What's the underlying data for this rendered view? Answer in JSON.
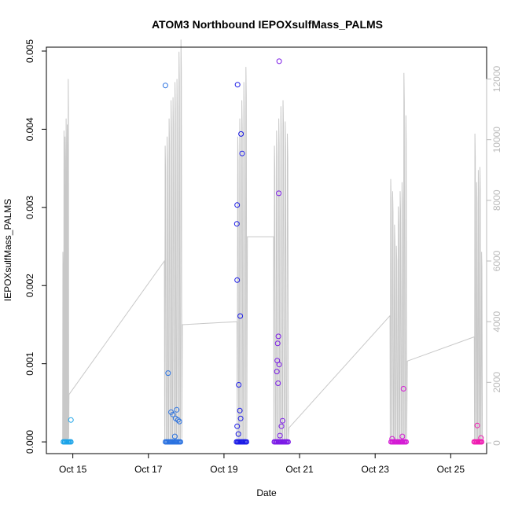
{
  "chart_data": {
    "type": "scatter",
    "title": "ATOM3 Northbound IEPOXsulfMass_PALMS",
    "xlabel": "Date",
    "ylabel": "IEPOXsulfMass_PALMS",
    "x_ticks": [
      "Oct 15",
      "Oct 17",
      "Oct 19",
      "Oct 21",
      "Oct 23",
      "Oct 25"
    ],
    "xlim_days": [
      14.3,
      25.95
    ],
    "ylim": [
      -0.00015,
      0.00505
    ],
    "y_ticks": [
      "0.000",
      "0.001",
      "0.002",
      "0.003",
      "0.004",
      "0.005"
    ],
    "y2_ticks": [
      "0",
      "2000",
      "4000",
      "6000",
      "8000",
      "10000",
      "12000"
    ],
    "y2lim": [
      -350,
      13050
    ],
    "grid": false,
    "colors": {
      "altitude_line": "#c8c8c8",
      "secondary_axis": "#bbbbbb",
      "flight_colors": [
        "#1aa3e8",
        "#2b72e0",
        "#1a1ae6",
        "#7b1ae6",
        "#d41ad4",
        "#ef1ab0"
      ]
    },
    "points": [
      {
        "x": 14.95,
        "y": 0.00028,
        "c": 0
      },
      {
        "x": 17.45,
        "y": 0.00456,
        "c": 1
      },
      {
        "x": 17.52,
        "y": 0.00088,
        "c": 1
      },
      {
        "x": 17.6,
        "y": 0.00038,
        "c": 1
      },
      {
        "x": 17.65,
        "y": 0.00035,
        "c": 1
      },
      {
        "x": 17.72,
        "y": 0.0003,
        "c": 1
      },
      {
        "x": 17.75,
        "y": 0.00041,
        "c": 1
      },
      {
        "x": 17.78,
        "y": 0.00028,
        "c": 1
      },
      {
        "x": 17.82,
        "y": 0.00026,
        "c": 1
      },
      {
        "x": 17.7,
        "y": 7e-05,
        "c": 1
      },
      {
        "x": 19.36,
        "y": 0.00457,
        "c": 2
      },
      {
        "x": 19.45,
        "y": 0.00394,
        "c": 2
      },
      {
        "x": 19.48,
        "y": 0.00369,
        "c": 2
      },
      {
        "x": 19.35,
        "y": 0.00303,
        "c": 2
      },
      {
        "x": 19.34,
        "y": 0.00279,
        "c": 2
      },
      {
        "x": 19.35,
        "y": 0.00207,
        "c": 2
      },
      {
        "x": 19.43,
        "y": 0.00161,
        "c": 2
      },
      {
        "x": 19.39,
        "y": 0.00073,
        "c": 2
      },
      {
        "x": 19.42,
        "y": 0.0004,
        "c": 2
      },
      {
        "x": 19.44,
        "y": 0.0003,
        "c": 2
      },
      {
        "x": 19.35,
        "y": 0.0002,
        "c": 2
      },
      {
        "x": 19.38,
        "y": 0.0001,
        "c": 2
      },
      {
        "x": 20.46,
        "y": 0.00487,
        "c": 3
      },
      {
        "x": 20.45,
        "y": 0.00318,
        "c": 3
      },
      {
        "x": 20.44,
        "y": 0.00135,
        "c": 3
      },
      {
        "x": 20.42,
        "y": 0.00126,
        "c": 3
      },
      {
        "x": 20.41,
        "y": 0.00104,
        "c": 3
      },
      {
        "x": 20.46,
        "y": 0.00099,
        "c": 3
      },
      {
        "x": 20.4,
        "y": 0.0009,
        "c": 3
      },
      {
        "x": 20.43,
        "y": 0.00075,
        "c": 3
      },
      {
        "x": 20.55,
        "y": 0.00027,
        "c": 3
      },
      {
        "x": 20.52,
        "y": 0.0002,
        "c": 3
      },
      {
        "x": 20.48,
        "y": 8e-05,
        "c": 3
      },
      {
        "x": 23.75,
        "y": 0.00068,
        "c": 4
      },
      {
        "x": 23.45,
        "y": 4e-05,
        "c": 4
      },
      {
        "x": 23.72,
        "y": 7e-05,
        "c": 4
      },
      {
        "x": 25.7,
        "y": 0.00021,
        "c": 5
      },
      {
        "x": 25.8,
        "y": 5e-05,
        "c": 5
      }
    ],
    "zero_clusters": [
      {
        "x_start": 14.75,
        "x_end": 14.97,
        "c": 0
      },
      {
        "x_start": 17.45,
        "x_end": 17.88,
        "c": 1
      },
      {
        "x_start": 19.33,
        "x_end": 19.6,
        "c": 2
      },
      {
        "x_start": 20.33,
        "x_end": 20.7,
        "c": 3
      },
      {
        "x_start": 23.42,
        "x_end": 23.82,
        "c": 4
      },
      {
        "x_start": 25.62,
        "x_end": 25.85,
        "c": 5
      }
    ],
    "altitude_series": {
      "flights": [
        {
          "x_start": 14.73,
          "x_end": 14.9,
          "peaks": [
            6300,
            10300,
            10100,
            10700,
            10500,
            12000
          ],
          "end_value": 1600
        },
        {
          "x_start": 17.43,
          "x_end": 17.9,
          "peaks": [
            9800,
            10100,
            10700,
            11300,
            11400,
            11900,
            12000,
            12900,
            13300
          ],
          "start_value": 6000,
          "end_value": 3900
        },
        {
          "x_start": 19.35,
          "x_end": 19.62,
          "peaks": [
            10100,
            10700,
            11300,
            11900,
            12400
          ],
          "start_value": 4000,
          "end_value": 6800
        },
        {
          "x_start": 20.32,
          "x_end": 20.72,
          "peaks": [
            9800,
            10300,
            10700,
            11100,
            11300,
            10600,
            10200
          ],
          "start_value": 6800,
          "end_value": 500
        },
        {
          "x_start": 23.4,
          "x_end": 23.85,
          "peaks": [
            8700,
            8300,
            7200,
            6500,
            7800,
            8300,
            8600,
            12200,
            10800
          ],
          "start_value": 4200,
          "end_value": 2700
        },
        {
          "x_start": 25.63,
          "x_end": 25.85,
          "peaks": [
            10200,
            8600,
            9000,
            9100,
            6300
          ],
          "start_value": 3500,
          "end_value": 200
        }
      ]
    }
  }
}
